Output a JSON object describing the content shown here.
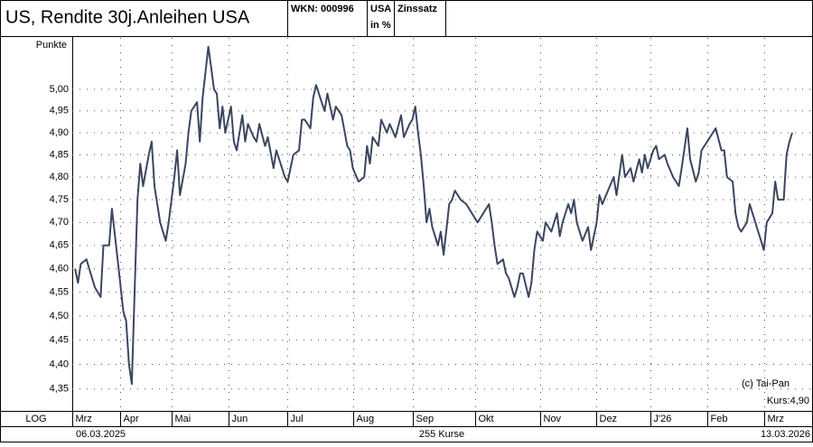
{
  "chart_data": {
    "type": "line",
    "title": "US, Rendite 30j.Anleihen USA",
    "header": {
      "wkn": "WKN: 000996",
      "unit_1": "USA",
      "unit_2": "in %",
      "kind": "Zinssatz"
    },
    "y_label": "Punkte",
    "scale_label": "LOG",
    "log_scale": true,
    "grid": true,
    "copyright": "(c) Tai-Pan",
    "last_price": "Kurs:4,90",
    "start_date": "06.03.2025",
    "end_date": "13.03.2026",
    "count_label": "255 Kurse",
    "xlim": [
      0,
      254
    ],
    "xticks": [
      {
        "value": 0,
        "label": "Mrz"
      },
      {
        "value": 17,
        "label": "Apr"
      },
      {
        "value": 35,
        "label": "Mai"
      },
      {
        "value": 55,
        "label": "Jun"
      },
      {
        "value": 76,
        "label": "Jul"
      },
      {
        "value": 99,
        "label": "Aug"
      },
      {
        "value": 120,
        "label": "Sep"
      },
      {
        "value": 142,
        "label": "Okt"
      },
      {
        "value": 165,
        "label": "Nov"
      },
      {
        "value": 185,
        "label": "Dez"
      },
      {
        "value": 204,
        "label": "J'26"
      },
      {
        "value": 224,
        "label": "Feb"
      },
      {
        "value": 244,
        "label": "Mrz"
      }
    ],
    "ylim": [
      4.306,
      5.125
    ],
    "yticks": [
      {
        "value": 4.35,
        "label": "4,35"
      },
      {
        "value": 4.4,
        "label": "4,40"
      },
      {
        "value": 4.45,
        "label": "4,45"
      },
      {
        "value": 4.5,
        "label": "4,50"
      },
      {
        "value": 4.55,
        "label": "4,55"
      },
      {
        "value": 4.6,
        "label": "4,60"
      },
      {
        "value": 4.65,
        "label": "4,65"
      },
      {
        "value": 4.7,
        "label": "4,70"
      },
      {
        "value": 4.75,
        "label": "4,75"
      },
      {
        "value": 4.8,
        "label": "4,80"
      },
      {
        "value": 4.85,
        "label": "4,85"
      },
      {
        "value": 4.9,
        "label": "4,90"
      },
      {
        "value": 4.95,
        "label": "4,95"
      },
      {
        "value": 5.0,
        "label": "5,00"
      }
    ],
    "color": "#3b4660",
    "x": [
      1,
      2,
      3,
      5,
      6,
      8,
      10,
      11,
      13,
      14,
      16,
      18,
      19,
      20,
      21,
      22,
      23,
      24,
      25,
      27,
      28,
      29,
      31,
      33,
      34,
      36,
      37,
      38,
      40,
      41,
      42,
      44,
      45,
      46,
      47,
      48,
      49,
      50,
      51,
      52,
      53,
      54,
      56,
      57,
      58,
      60,
      61,
      62,
      64,
      65,
      66,
      68,
      69,
      71,
      72,
      74,
      75,
      76,
      78,
      80,
      81,
      82,
      84,
      85,
      86,
      88,
      89,
      90,
      92,
      93,
      95,
      97,
      98,
      99,
      101,
      103,
      104,
      105,
      106,
      108,
      109,
      111,
      112,
      114,
      116,
      117,
      119,
      120,
      121,
      122,
      123,
      124,
      125,
      126,
      127,
      129,
      130,
      131,
      133,
      134,
      135,
      137,
      139,
      140,
      142,
      143,
      145,
      147,
      148,
      149,
      150,
      152,
      153,
      154,
      156,
      157,
      158,
      159,
      161,
      162,
      163,
      164,
      166,
      167,
      169,
      171,
      172,
      173,
      175,
      176,
      177,
      178,
      180,
      182,
      183,
      185,
      186,
      187,
      189,
      191,
      192,
      194,
      195,
      197,
      198,
      200,
      201,
      202,
      203,
      205,
      206,
      207,
      209,
      210,
      212,
      214,
      215,
      217,
      218,
      220,
      221,
      222,
      224,
      226,
      227,
      229,
      230,
      231,
      233,
      234,
      235,
      236,
      238,
      239,
      241,
      242,
      243,
      244,
      245,
      247,
      248,
      249,
      251,
      252,
      253,
      254
    ],
    "values": [
      4.6,
      4.57,
      4.61,
      4.62,
      4.6,
      4.56,
      4.54,
      4.65,
      4.65,
      4.73,
      4.62,
      4.51,
      4.49,
      4.4,
      4.36,
      4.55,
      4.75,
      4.83,
      4.78,
      4.85,
      4.88,
      4.78,
      4.7,
      4.66,
      4.7,
      4.8,
      4.86,
      4.76,
      4.83,
      4.9,
      4.95,
      4.97,
      4.88,
      4.98,
      5.04,
      5.1,
      5.05,
      5.0,
      4.99,
      4.91,
      4.96,
      4.9,
      4.96,
      4.88,
      4.86,
      4.94,
      4.88,
      4.92,
      4.89,
      4.88,
      4.92,
      4.87,
      4.89,
      4.82,
      4.86,
      4.82,
      4.8,
      4.79,
      4.85,
      4.86,
      4.93,
      4.93,
      4.91,
      4.98,
      5.01,
      4.97,
      4.95,
      4.99,
      4.93,
      4.96,
      4.94,
      4.87,
      4.86,
      4.82,
      4.79,
      4.8,
      4.87,
      4.83,
      4.89,
      4.87,
      4.93,
      4.9,
      4.92,
      4.89,
      4.94,
      4.89,
      4.92,
      4.93,
      4.96,
      4.9,
      4.85,
      4.78,
      4.7,
      4.73,
      4.69,
      4.65,
      4.68,
      4.63,
      4.74,
      4.75,
      4.77,
      4.75,
      4.74,
      4.73,
      4.71,
      4.7,
      4.72,
      4.74,
      4.7,
      4.65,
      4.61,
      4.62,
      4.59,
      4.58,
      4.54,
      4.56,
      4.59,
      4.59,
      4.54,
      4.57,
      4.64,
      4.68,
      4.66,
      4.7,
      4.68,
      4.72,
      4.67,
      4.7,
      4.74,
      4.72,
      4.75,
      4.7,
      4.66,
      4.69,
      4.64,
      4.7,
      4.76,
      4.74,
      4.77,
      4.8,
      4.76,
      4.85,
      4.8,
      4.82,
      4.79,
      4.84,
      4.81,
      4.85,
      4.82,
      4.86,
      4.87,
      4.84,
      4.85,
      4.83,
      4.8,
      4.78,
      4.82,
      4.91,
      4.84,
      4.79,
      4.81,
      4.86,
      4.88,
      4.9,
      4.91,
      4.86,
      4.86,
      4.8,
      4.79,
      4.72,
      4.69,
      4.68,
      4.7,
      4.74,
      4.7,
      4.68,
      4.66,
      4.64,
      4.7,
      4.72,
      4.79,
      4.75,
      4.75,
      4.85,
      4.88,
      4.9
    ]
  }
}
